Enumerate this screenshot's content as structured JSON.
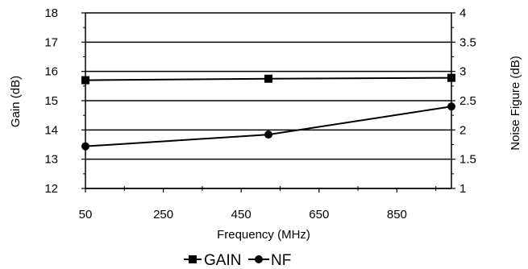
{
  "chart_data": {
    "type": "line",
    "xlabel": "Frequency (MHz)",
    "ylabel_left": "Gain (dB)",
    "ylabel_right": "Noise Figure (dB)",
    "xlim": [
      50,
      990
    ],
    "ylim_left": [
      12,
      18
    ],
    "ylim_right": [
      1,
      4
    ],
    "xticks": [
      "50",
      "250",
      "450",
      "650",
      "850"
    ],
    "yticks_left": [
      "12",
      "13",
      "14",
      "15",
      "16",
      "17",
      "18"
    ],
    "yticks_right": [
      "1",
      "1.5",
      "2",
      "2.5",
      "3",
      "3.5",
      "4"
    ],
    "grid": "horizontal",
    "legend_position": "bottom",
    "series": [
      {
        "name": "GAIN",
        "axis": "left",
        "marker": "square",
        "x": [
          50,
          520,
          990
        ],
        "values": [
          15.7,
          15.75,
          15.78
        ]
      },
      {
        "name": "NF",
        "axis": "right",
        "marker": "circle",
        "x": [
          50,
          520,
          990
        ],
        "values": [
          1.72,
          1.92,
          2.4
        ]
      }
    ]
  }
}
